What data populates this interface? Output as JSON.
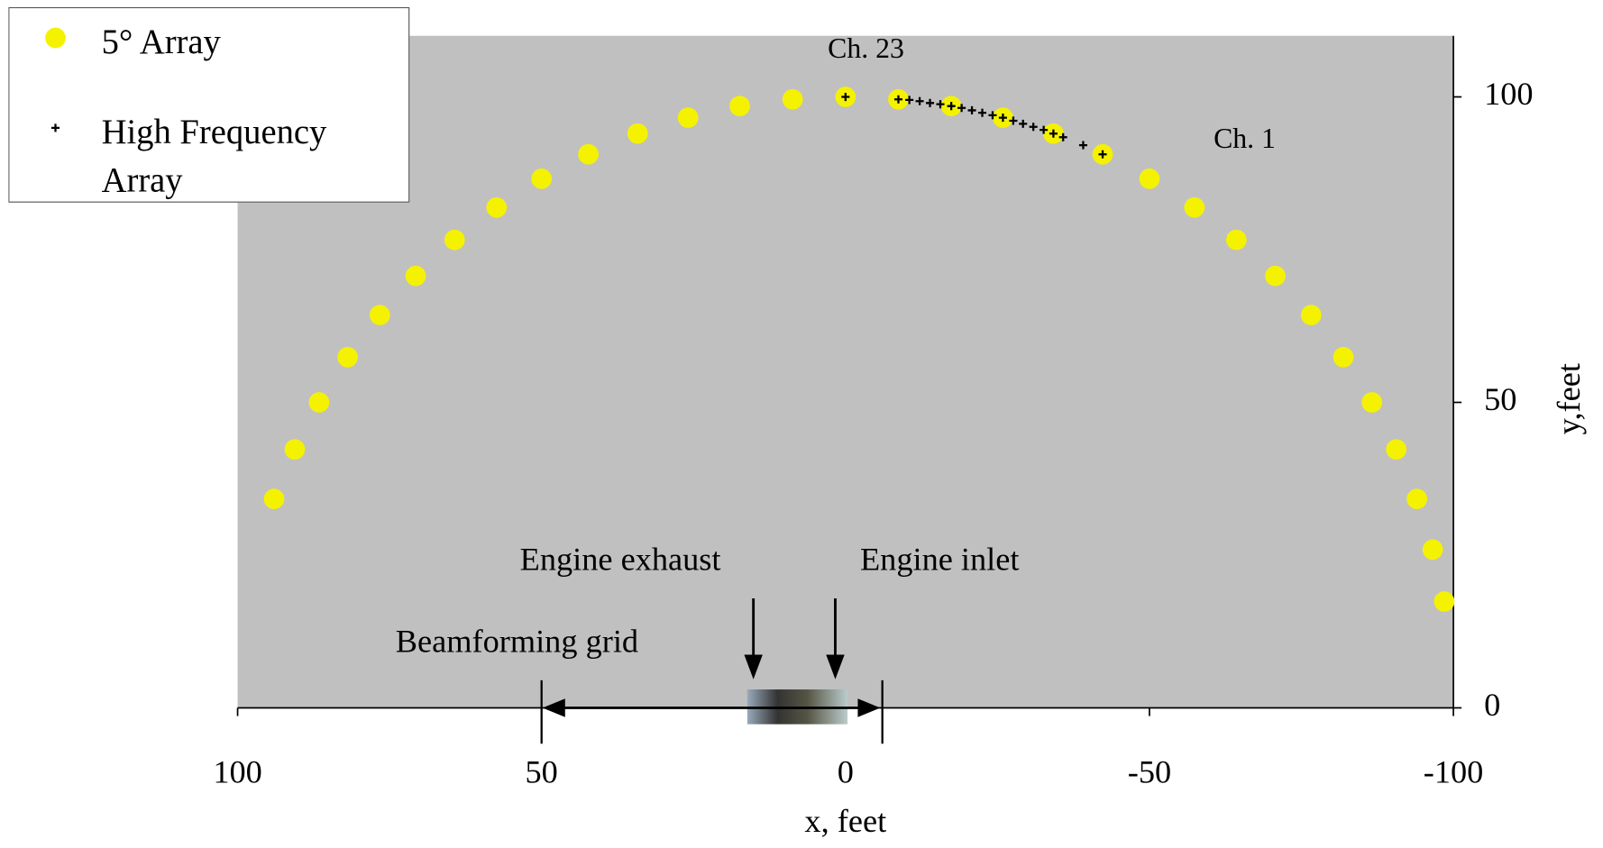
{
  "chart_data": {
    "type": "scatter",
    "x_label": "x, feet",
    "y_label": "y,feet",
    "xlim": [
      100,
      -100
    ],
    "xticks": [
      100,
      50,
      0,
      -50,
      -100
    ],
    "ylim": [
      0,
      110
    ],
    "yticks": [
      0,
      50,
      100
    ],
    "y_axis_side": "right",
    "grid": false,
    "plot_background": "#c0c0c0",
    "legend": "upper left",
    "annotations": [
      "Ch. 23",
      "Ch. 1",
      "Engine exhaust",
      "Engine inlet",
      "Beamforming grid"
    ],
    "series": [
      {
        "name": "5° Array",
        "color": "#f5f200",
        "marker": "circle",
        "x": [
          94.0,
          90.6,
          86.6,
          81.9,
          76.6,
          70.7,
          64.3,
          57.4,
          50.0,
          42.3,
          34.2,
          25.9,
          17.4,
          8.7,
          0,
          -8.7,
          -17.4,
          -25.9,
          -34.2,
          -42.3,
          -50.0,
          -57.4,
          -64.3,
          -70.7,
          -76.6,
          -81.9,
          -86.6,
          -90.6,
          -94.0,
          -96.6,
          -98.5
        ],
        "y": [
          34.2,
          42.3,
          50.0,
          57.4,
          64.3,
          70.7,
          76.6,
          81.9,
          86.6,
          90.6,
          94.0,
          96.6,
          98.5,
          99.6,
          100,
          99.6,
          98.5,
          96.6,
          94.0,
          90.6,
          86.6,
          81.9,
          76.6,
          70.7,
          64.3,
          57.4,
          50.0,
          42.3,
          34.2,
          25.9,
          17.4
        ]
      },
      {
        "name": "High Frequency Array",
        "color": "#000000",
        "marker": "plus",
        "x": [
          0,
          -8.7,
          -10.5,
          -12.2,
          -13.9,
          -15.6,
          -17.4,
          -19.1,
          -20.8,
          -22.5,
          -24.2,
          -25.9,
          -27.6,
          -29.2,
          -30.9,
          -32.6,
          -34.2,
          -35.8,
          -39.1,
          -42.3
        ],
        "y": [
          100,
          99.6,
          99.5,
          99.3,
          99.0,
          98.8,
          98.5,
          98.2,
          97.8,
          97.4,
          97.0,
          96.6,
          96.1,
          95.6,
          95.1,
          94.6,
          94.0,
          93.4,
          92.1,
          90.6
        ]
      }
    ]
  }
}
